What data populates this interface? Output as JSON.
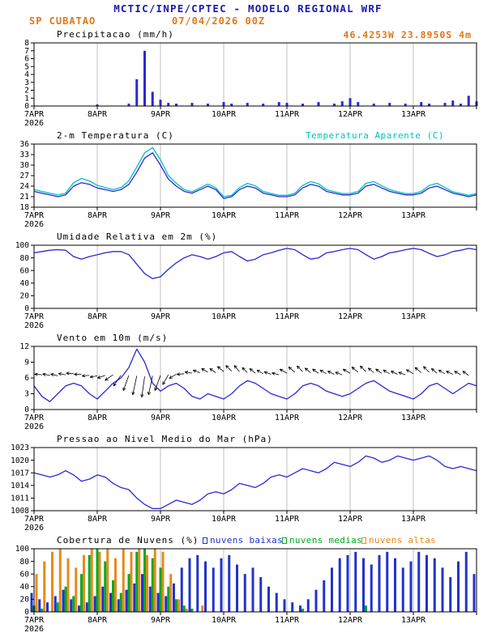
{
  "header": {
    "title": "MCTIC/INPE/CPTEC - MODELO REGIONAL WRF",
    "station": "SP CUBATAO",
    "run": "07/04/2026 00Z"
  },
  "x_axis": {
    "labels": [
      "7APR",
      "8APR",
      "9APR",
      "10APR",
      "11APR",
      "12APR",
      "13APR"
    ],
    "year": "2026",
    "total_hours": 168,
    "step_hours": 3,
    "day_tick_hours": [
      0,
      24,
      48,
      72,
      96,
      120,
      144
    ]
  },
  "chart_data": [
    {
      "id": "precip",
      "type": "bar",
      "title": "Precipitacao (mm/h)",
      "right_label": {
        "name": "location-coords",
        "text": "46.4253W 23.8950S 4m",
        "color": "#e07818"
      },
      "ylim": [
        0,
        8
      ],
      "yticks": [
        0,
        1,
        2,
        3,
        4,
        5,
        6,
        7,
        8
      ],
      "series": [
        {
          "name": "precipitacao",
          "type": "bar",
          "color": "#2929d6",
          "values": [
            0,
            0,
            0,
            0,
            0,
            0,
            0,
            0,
            0.2,
            0,
            0,
            0,
            0.3,
            3.4,
            7.0,
            1.8,
            0.8,
            0.4,
            0.3,
            0,
            0.4,
            0,
            0.3,
            0,
            0.5,
            0.3,
            0,
            0.4,
            0,
            0.3,
            0,
            0.5,
            0.4,
            0,
            0.3,
            0,
            0.5,
            0,
            0.3,
            0.6,
            1.0,
            0.5,
            0,
            0.3,
            0,
            0.4,
            0,
            0.3,
            0,
            0.5,
            0.3,
            0,
            0.4,
            0.7,
            0.3,
            1.3,
            0.6
          ]
        }
      ]
    },
    {
      "id": "temp",
      "type": "line",
      "title": "2-m Temperatura (C)",
      "right_label": {
        "name": "apparent-temperature-label",
        "text": "Temperatura Aparente (C)",
        "color": "#00c2c2"
      },
      "ylim": [
        18,
        36
      ],
      "yticks": [
        18,
        21,
        24,
        27,
        30,
        33,
        36
      ],
      "series": [
        {
          "name": "temperatura-aparente",
          "type": "line",
          "color": "#00c2c2",
          "values": [
            23,
            22.5,
            22,
            21.5,
            22,
            25,
            26.2,
            25.5,
            24.2,
            23.6,
            23,
            23.6,
            25.5,
            29.5,
            33.5,
            35,
            31.5,
            27,
            24.8,
            23,
            22.4,
            23.5,
            24.6,
            23.5,
            21,
            21.4,
            23.6,
            24.8,
            24.1,
            22.5,
            21.9,
            21.4,
            21.4,
            22,
            24.2,
            25.3,
            24.7,
            23,
            22.4,
            21.9,
            21.9,
            22.5,
            24.8,
            25.3,
            24.1,
            23,
            22.4,
            21.9,
            21.9,
            22.5,
            24.2,
            24.8,
            23.6,
            22.4,
            21.9,
            21.4,
            21.9
          ]
        },
        {
          "name": "temperatura",
          "type": "line",
          "color": "#2929d6",
          "values": [
            22.5,
            22,
            21.5,
            21,
            21.5,
            24,
            25,
            24.5,
            23.5,
            23,
            22.5,
            23,
            24.5,
            28,
            32,
            33.5,
            30,
            26,
            24,
            22.5,
            22,
            23,
            24,
            23,
            20.5,
            21,
            23,
            24,
            23.5,
            22,
            21.5,
            21,
            21,
            21.5,
            23.5,
            24.5,
            24,
            22.5,
            22,
            21.5,
            21.5,
            22,
            24,
            24.5,
            23.5,
            22.5,
            22,
            21.5,
            21.5,
            22,
            23.5,
            24,
            23,
            22,
            21.5,
            21,
            21.5
          ]
        }
      ]
    },
    {
      "id": "rh",
      "type": "line",
      "title": "Umidade Relativa em 2m (%)",
      "ylim": [
        0,
        100
      ],
      "yticks": [
        0,
        20,
        40,
        60,
        80,
        100
      ],
      "series": [
        {
          "name": "umidade-relativa",
          "type": "line",
          "color": "#2929d6",
          "values": [
            88,
            90,
            92,
            93,
            92,
            82,
            78,
            82,
            85,
            88,
            90,
            90,
            85,
            70,
            55,
            47,
            50,
            62,
            72,
            80,
            85,
            82,
            78,
            82,
            88,
            90,
            82,
            75,
            78,
            85,
            88,
            92,
            95,
            93,
            85,
            78,
            80,
            88,
            90,
            93,
            95,
            93,
            85,
            78,
            82,
            88,
            90,
            93,
            95,
            93,
            87,
            82,
            85,
            90,
            92,
            95,
            93
          ]
        }
      ]
    },
    {
      "id": "wind",
      "type": "line",
      "title": "Vento em 10m (m/s)",
      "ylim": [
        0,
        12
      ],
      "yticks": [
        0,
        3,
        6,
        9,
        12
      ],
      "series": [
        {
          "name": "velocidade-vento",
          "type": "line",
          "color": "#2929d6",
          "values": [
            4.5,
            2.5,
            1.5,
            3,
            4.5,
            5,
            4.5,
            3,
            2,
            3.5,
            5,
            6,
            8,
            11.5,
            9,
            5,
            3.5,
            4.5,
            5,
            4,
            2.5,
            2,
            3,
            2.5,
            2,
            3,
            4.5,
            5.5,
            5,
            4,
            3,
            2.5,
            2,
            3,
            4.5,
            5,
            4.5,
            3.5,
            3,
            2.5,
            3,
            4,
            5,
            5.5,
            4.5,
            3.5,
            3,
            2.5,
            2,
            3,
            4.5,
            5,
            4,
            3,
            4,
            5,
            4.5
          ]
        }
      ],
      "barb_color": "#000000",
      "barbs": [
        [
          3,
          6.6,
          175,
          9
        ],
        [
          6,
          6.5,
          170,
          9
        ],
        [
          9,
          6.4,
          165,
          9
        ],
        [
          12,
          6.6,
          170,
          9
        ],
        [
          15,
          6.8,
          175,
          9
        ],
        [
          18,
          6.7,
          180,
          9
        ],
        [
          21,
          6.5,
          185,
          9
        ],
        [
          24,
          6.4,
          190,
          9
        ],
        [
          27,
          6.5,
          200,
          10
        ],
        [
          30,
          6.6,
          215,
          12
        ],
        [
          33,
          6.5,
          235,
          16
        ],
        [
          36,
          6.5,
          250,
          20
        ],
        [
          39,
          6.4,
          258,
          24
        ],
        [
          42,
          6.3,
          262,
          26
        ],
        [
          45,
          6.4,
          258,
          24
        ],
        [
          48,
          6.5,
          250,
          20
        ],
        [
          51,
          6.6,
          240,
          14
        ],
        [
          54,
          6.7,
          210,
          10
        ],
        [
          57,
          6.8,
          185,
          9
        ],
        [
          60,
          6.9,
          170,
          9
        ],
        [
          63,
          7.0,
          160,
          9
        ],
        [
          66,
          7.1,
          150,
          9
        ],
        [
          69,
          7.0,
          145,
          9
        ],
        [
          72,
          7.2,
          140,
          10
        ],
        [
          75,
          7.3,
          135,
          10
        ],
        [
          78,
          7.2,
          130,
          10
        ],
        [
          81,
          7.0,
          135,
          9
        ],
        [
          84,
          6.9,
          140,
          9
        ],
        [
          87,
          6.8,
          150,
          9
        ],
        [
          90,
          6.7,
          160,
          9
        ],
        [
          93,
          6.6,
          165,
          9
        ],
        [
          96,
          6.9,
          150,
          10
        ],
        [
          99,
          7.1,
          140,
          10
        ],
        [
          102,
          7.2,
          135,
          10
        ],
        [
          105,
          7.0,
          140,
          9
        ],
        [
          108,
          6.9,
          145,
          9
        ],
        [
          111,
          6.8,
          150,
          9
        ],
        [
          114,
          6.7,
          155,
          9
        ],
        [
          117,
          6.6,
          160,
          9
        ],
        [
          120,
          6.9,
          150,
          10
        ],
        [
          123,
          7.1,
          140,
          10
        ],
        [
          126,
          7.2,
          135,
          10
        ],
        [
          129,
          7.0,
          140,
          9
        ],
        [
          132,
          6.9,
          145,
          9
        ],
        [
          135,
          6.8,
          150,
          9
        ],
        [
          138,
          6.7,
          155,
          9
        ],
        [
          141,
          6.6,
          160,
          9
        ],
        [
          144,
          6.8,
          150,
          10
        ],
        [
          147,
          7.0,
          140,
          10
        ],
        [
          150,
          7.1,
          135,
          10
        ],
        [
          153,
          6.9,
          140,
          9
        ],
        [
          156,
          6.8,
          150,
          9
        ],
        [
          159,
          6.7,
          155,
          9
        ],
        [
          162,
          6.6,
          150,
          9
        ],
        [
          165,
          6.5,
          145,
          9
        ]
      ]
    },
    {
      "id": "pres",
      "type": "line",
      "title": "Pressao ao Nivel Medio do Mar (hPa)",
      "ylim": [
        1008,
        1023
      ],
      "yticks": [
        1008,
        1011,
        1014,
        1017,
        1020,
        1023
      ],
      "series": [
        {
          "name": "pressao",
          "type": "line",
          "color": "#2929d6",
          "values": [
            1017,
            1016.5,
            1016,
            1016.5,
            1017.5,
            1016.5,
            1015,
            1015.5,
            1016.5,
            1016,
            1014.5,
            1013.5,
            1013,
            1011,
            1009.5,
            1008.5,
            1008.5,
            1009.5,
            1010.5,
            1010,
            1009.5,
            1010.5,
            1012,
            1012.5,
            1012,
            1013,
            1014.5,
            1014,
            1013.5,
            1014.5,
            1016,
            1016.5,
            1016,
            1017,
            1018,
            1017.5,
            1017,
            1018,
            1019.5,
            1019,
            1018.5,
            1019.5,
            1021,
            1020.5,
            1019.5,
            1020,
            1021,
            1020.5,
            1020,
            1020.5,
            1021,
            1020,
            1018.5,
            1018,
            1018.5,
            1018,
            1017.5
          ]
        }
      ]
    },
    {
      "id": "clouds",
      "type": "bar",
      "title": "Cobertura de Nuvens (%)",
      "ylim": [
        0,
        100
      ],
      "yticks": [
        0,
        20,
        40,
        60,
        80,
        100
      ],
      "legend": [
        {
          "key": "nuvens-baixas",
          "label": "nuvens baixas",
          "color": "#2233cc"
        },
        {
          "key": "nuvens-medias",
          "label": "nuvens medias",
          "color": "#00aa22"
        },
        {
          "key": "nuvens-altas",
          "label": "nuvens altas",
          "color": "#e8891a"
        }
      ],
      "series": [
        {
          "name": "nuvens-altas",
          "type": "bar",
          "color": "#e8891a",
          "offset": 3,
          "values": [
            60,
            80,
            95,
            100,
            85,
            70,
            90,
            100,
            95,
            100,
            85,
            100,
            95,
            100,
            90,
            100,
            95,
            60,
            20,
            5,
            0,
            10,
            0,
            0,
            0,
            0,
            0,
            0,
            0,
            0,
            0,
            0,
            0,
            0,
            0,
            0,
            0,
            0,
            0,
            0,
            0,
            0,
            0,
            0,
            0,
            0,
            0,
            0,
            0,
            0,
            0,
            0,
            0,
            0,
            0,
            0,
            0
          ]
        },
        {
          "name": "nuvens-medias",
          "type": "bar",
          "color": "#00aa22",
          "offset": 0,
          "values": [
            10,
            5,
            0,
            15,
            40,
            25,
            60,
            90,
            100,
            80,
            50,
            30,
            60,
            95,
            100,
            85,
            70,
            40,
            20,
            10,
            5,
            0,
            0,
            0,
            0,
            0,
            0,
            0,
            0,
            0,
            0,
            0,
            0,
            0,
            5,
            0,
            0,
            0,
            0,
            0,
            0,
            0,
            10,
            0,
            0,
            0,
            0,
            0,
            0,
            0,
            0,
            0,
            0,
            0,
            0,
            0,
            0
          ]
        },
        {
          "name": "nuvens-baixas",
          "type": "bar",
          "color": "#2233cc",
          "offset": -3,
          "values": [
            30,
            20,
            15,
            25,
            35,
            20,
            10,
            15,
            25,
            40,
            30,
            20,
            35,
            45,
            60,
            40,
            30,
            25,
            45,
            70,
            85,
            90,
            80,
            70,
            85,
            90,
            75,
            60,
            70,
            55,
            40,
            30,
            20,
            15,
            10,
            20,
            35,
            50,
            70,
            85,
            90,
            95,
            85,
            75,
            90,
            95,
            85,
            70,
            80,
            95,
            90,
            85,
            70,
            55,
            80,
            95,
            60
          ]
        }
      ]
    }
  ]
}
